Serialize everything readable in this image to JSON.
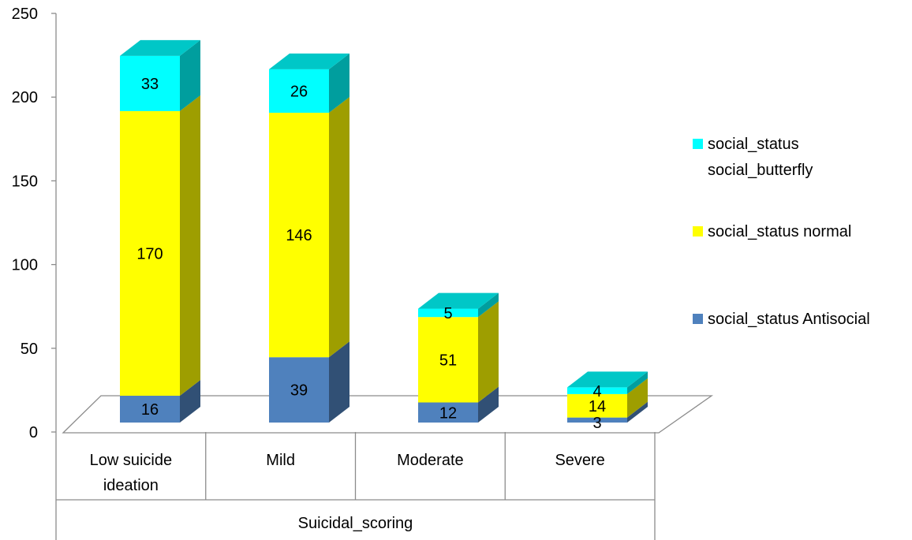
{
  "chart_data": {
    "type": "bar",
    "stacked": true,
    "style": "3d",
    "categories": [
      [
        "Low suicide",
        "ideation"
      ],
      [
        "Mild"
      ],
      [
        "Moderate"
      ],
      [
        "Severe"
      ]
    ],
    "series": [
      {
        "name": "social_status Antisocial",
        "values": [
          16,
          39,
          12,
          3
        ],
        "color": "#4F81BD"
      },
      {
        "name": "social_status normal",
        "values": [
          170,
          146,
          51,
          14
        ],
        "color": "#FFFF00"
      },
      {
        "name": "social_status social_butterfly",
        "values": [
          33,
          26,
          5,
          4
        ],
        "color": "#00FFFF"
      }
    ],
    "legend_order": [
      2,
      1,
      0
    ],
    "legend_lines": [
      [
        "social_status",
        "social_butterfly"
      ],
      [
        "social_status normal"
      ],
      [
        "social_status Antisocial"
      ]
    ],
    "xlabel": "Suicidal_scoring",
    "ylabel": "",
    "ylim": [
      0,
      250
    ],
    "yticks": [
      0,
      50,
      100,
      150,
      200,
      250
    ],
    "grid": false,
    "legend_position": "right"
  }
}
